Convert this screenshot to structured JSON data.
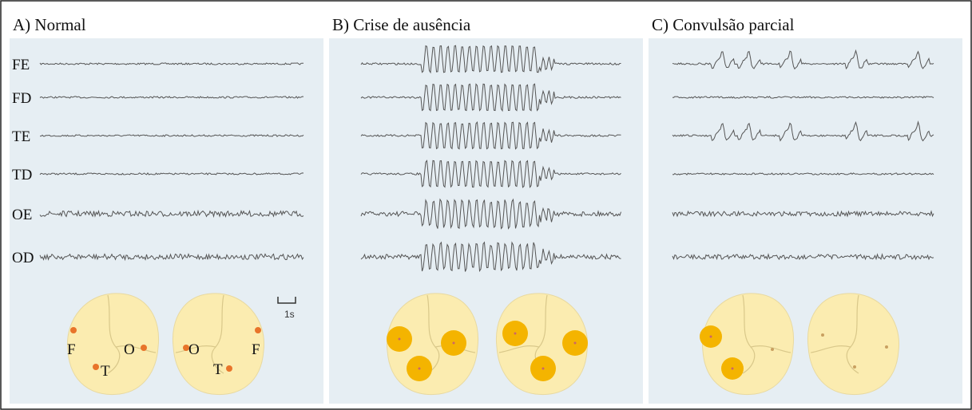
{
  "panels": [
    {
      "title": "A) Normal",
      "channels": [
        "FE",
        "FD",
        "TE",
        "TD",
        "OE",
        "OD"
      ],
      "scale": "1s",
      "brain_labels": [
        "F",
        "T",
        "O",
        "O",
        "T",
        "F"
      ]
    },
    {
      "title": "B) Crise de ausência"
    },
    {
      "title": "C) Convulsão parcial"
    }
  ]
}
